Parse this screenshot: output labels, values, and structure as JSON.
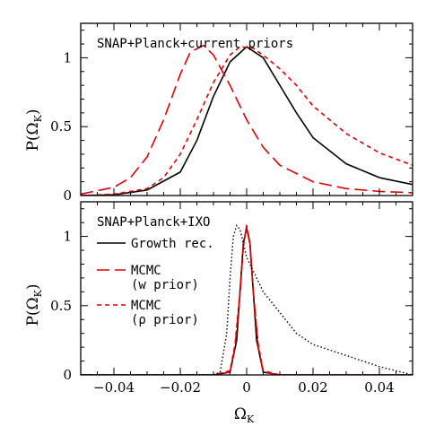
{
  "chart_data": [
    {
      "type": "line",
      "title": "SNAP+Planck+current priors",
      "xlabel": "",
      "ylabel": "P(Ω_K)",
      "ylabel_main": "P(Ω",
      "ylabel_sub": "K",
      "ylabel_close": ")",
      "xlim": [
        -0.05,
        0.05
      ],
      "ylim": [
        0,
        1.25
      ],
      "yticks": [
        0,
        0.5,
        1
      ],
      "ytick_labels": [
        "0",
        "0.5",
        "1"
      ],
      "xticks": [
        -0.04,
        -0.02,
        0,
        0.02,
        0.04
      ],
      "xtick_labels": [],
      "legend": "none",
      "series": [
        {
          "key": "growth",
          "style": "solid",
          "color": "#000000",
          "x": [
            -0.05,
            -0.04,
            -0.03,
            -0.02,
            -0.015,
            -0.01,
            -0.005,
            0.0,
            0.005,
            0.01,
            0.015,
            0.02,
            0.03,
            0.04,
            0.05
          ],
          "y": [
            0.0,
            0.005,
            0.04,
            0.17,
            0.4,
            0.72,
            0.97,
            1.08,
            1.0,
            0.8,
            0.6,
            0.42,
            0.23,
            0.13,
            0.08
          ]
        },
        {
          "key": "mcmc_w",
          "style": "longdash",
          "color": "#dd0000",
          "x": [
            -0.05,
            -0.04,
            -0.035,
            -0.03,
            -0.025,
            -0.02,
            -0.017,
            -0.013,
            -0.01,
            -0.005,
            0.0,
            0.005,
            0.01,
            0.02,
            0.03,
            0.04,
            0.05
          ],
          "y": [
            0.01,
            0.06,
            0.13,
            0.28,
            0.55,
            0.88,
            1.04,
            1.09,
            1.02,
            0.8,
            0.55,
            0.35,
            0.22,
            0.1,
            0.05,
            0.03,
            0.02
          ]
        },
        {
          "key": "mcmc_rho",
          "style": "shortdash",
          "color": "#dd0000",
          "x": [
            -0.05,
            -0.04,
            -0.03,
            -0.025,
            -0.02,
            -0.015,
            -0.01,
            -0.005,
            -0.002,
            0.002,
            0.006,
            0.01,
            0.015,
            0.02,
            0.03,
            0.04,
            0.05
          ],
          "y": [
            0.0,
            0.01,
            0.05,
            0.13,
            0.3,
            0.55,
            0.82,
            1.02,
            1.08,
            1.07,
            1.0,
            0.92,
            0.8,
            0.65,
            0.45,
            0.31,
            0.22
          ]
        }
      ]
    },
    {
      "type": "line",
      "title": "SNAP+Planck+IXO",
      "xlabel": "Ω_K",
      "xlabel_main": "Ω",
      "xlabel_sub": "K",
      "ylabel": "P(Ω_K)",
      "ylabel_main": "P(Ω",
      "ylabel_sub": "K",
      "ylabel_close": ")",
      "xlim": [
        -0.05,
        0.05
      ],
      "ylim": [
        0,
        1.25
      ],
      "yticks": [
        0,
        0.5,
        1
      ],
      "ytick_labels": [
        "0",
        "0.5",
        "1"
      ],
      "xticks": [
        -0.04,
        -0.02,
        0,
        0.02,
        0.04
      ],
      "xtick_labels": [
        "−0.04",
        "−0.02",
        "0",
        "0.02",
        "0.04"
      ],
      "legend": "left",
      "series": [
        {
          "key": "growth",
          "name_lines": [
            "Growth rec."
          ],
          "style": "solid",
          "color": "#000000",
          "x": [
            -0.05,
            -0.01,
            -0.005,
            -0.003,
            -0.002,
            -0.001,
            0.0,
            0.001,
            0.002,
            0.003,
            0.005,
            0.01,
            0.05
          ],
          "y": [
            0.0,
            0.0,
            0.02,
            0.25,
            0.6,
            0.95,
            1.06,
            0.95,
            0.6,
            0.25,
            0.02,
            0.0,
            0.0
          ]
        },
        {
          "key": "mcmc_w",
          "name_lines": [
            "MCMC",
            "(w prior)"
          ],
          "style": "longdash",
          "color": "#dd0000",
          "x": [
            -0.05,
            -0.01,
            -0.005,
            -0.0035,
            -0.002,
            -0.001,
            0.0,
            0.001,
            0.002,
            0.0035,
            0.005,
            0.01,
            0.05
          ],
          "y": [
            0.0,
            0.0,
            0.02,
            0.2,
            0.58,
            0.93,
            1.08,
            0.95,
            0.6,
            0.2,
            0.02,
            0.0,
            0.0
          ]
        },
        {
          "key": "mcmc_rho",
          "name_lines": [
            "MCMC",
            "(ρ prior)"
          ],
          "style": "shortdash",
          "color": "#dd0000",
          "x": [
            -0.05,
            -0.01,
            -0.005,
            -0.0035,
            -0.002,
            -0.001,
            0.0,
            0.001,
            0.002,
            0.0035,
            0.005,
            0.01,
            0.05
          ],
          "y": [
            0.0,
            0.0,
            0.03,
            0.22,
            0.6,
            0.93,
            1.07,
            0.94,
            0.6,
            0.22,
            0.03,
            0.0,
            0.0
          ]
        },
        {
          "key": "dotted",
          "style": "dotted",
          "color": "#000000",
          "x": [
            -0.05,
            -0.01,
            -0.008,
            -0.006,
            -0.005,
            -0.004,
            -0.003,
            -0.002,
            -0.001,
            0.0,
            0.001,
            0.002,
            0.003,
            0.005,
            0.01,
            0.015,
            0.02,
            0.03,
            0.04,
            0.05
          ],
          "y": [
            0.0,
            0.0,
            0.02,
            0.3,
            0.7,
            1.0,
            1.08,
            1.05,
            0.95,
            0.85,
            0.8,
            0.75,
            0.7,
            0.6,
            0.45,
            0.3,
            0.22,
            0.14,
            0.06,
            0.0
          ]
        }
      ]
    }
  ]
}
